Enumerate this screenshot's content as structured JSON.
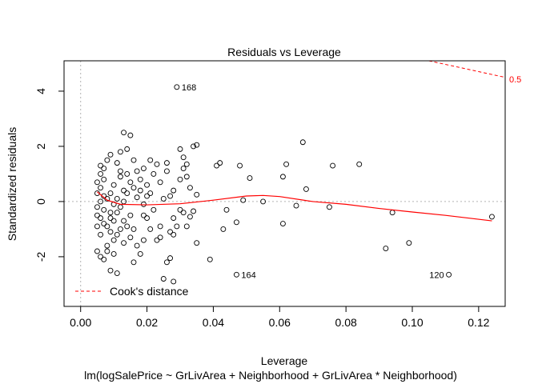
{
  "chart_data": {
    "type": "scatter",
    "title": "Residuals vs Leverage",
    "xlabel": "Leverage",
    "ylabel": "Standardized residuals",
    "subtitle": "lm(logSalePrice ~ GrLivArea + Neighborhood + GrLivArea * Neighborhood)",
    "xlim": [
      -0.005,
      0.128
    ],
    "ylim": [
      -3.8,
      5.1
    ],
    "x_ticks": [
      0.0,
      0.02,
      0.04,
      0.06,
      0.08,
      0.1,
      0.12
    ],
    "x_tick_labels": [
      "0.00",
      "0.02",
      "0.04",
      "0.06",
      "0.08",
      "0.10",
      "0.12"
    ],
    "y_ticks": [
      -2,
      0,
      2,
      4
    ],
    "y_tick_labels": [
      "-2",
      "0",
      "2",
      "4"
    ],
    "legend": {
      "label": "Cook's distance",
      "placement": "bottom-left",
      "color": "#ff0000"
    },
    "cooks_contour_label": "0.5",
    "cooks_contour": {
      "x": [
        0.105,
        0.128
      ],
      "y": [
        5.1,
        4.5
      ]
    },
    "reference_lines": {
      "h": 0,
      "v": 0
    },
    "colors": {
      "points": "#000000",
      "smooth": "#ff0000",
      "reference": "#b3b3b3"
    },
    "smooth_curve": {
      "x": [
        0.005,
        0.008,
        0.012,
        0.02,
        0.03,
        0.04,
        0.05,
        0.055,
        0.06,
        0.07,
        0.08,
        0.09,
        0.1,
        0.11,
        0.124
      ],
      "y": [
        0.35,
        0.05,
        -0.1,
        -0.12,
        -0.08,
        0.05,
        0.2,
        0.22,
        0.18,
        0.0,
        -0.1,
        -0.25,
        -0.38,
        -0.5,
        -0.7
      ]
    },
    "labeled_points": [
      {
        "label": "168",
        "x": 0.029,
        "y": 4.15
      },
      {
        "label": "164",
        "x": 0.047,
        "y": -2.65
      },
      {
        "label": "120",
        "x": 0.111,
        "y": -2.65
      }
    ],
    "points": [
      [
        0.029,
        4.15
      ],
      [
        0.047,
        -2.65
      ],
      [
        0.111,
        -2.65
      ],
      [
        0.067,
        2.15
      ],
      [
        0.084,
        1.35
      ],
      [
        0.076,
        1.3
      ],
      [
        0.062,
        1.35
      ],
      [
        0.051,
        0.85
      ],
      [
        0.048,
        1.3
      ],
      [
        0.042,
        1.4
      ],
      [
        0.041,
        1.3
      ],
      [
        0.044,
        -0.3
      ],
      [
        0.043,
        -1.0
      ],
      [
        0.047,
        -0.75
      ],
      [
        0.049,
        0.05
      ],
      [
        0.055,
        0.0
      ],
      [
        0.061,
        -0.8
      ],
      [
        0.061,
        0.9
      ],
      [
        0.065,
        -0.15
      ],
      [
        0.068,
        0.45
      ],
      [
        0.075,
        -0.2
      ],
      [
        0.092,
        -1.7
      ],
      [
        0.094,
        -0.4
      ],
      [
        0.099,
        -1.5
      ],
      [
        0.124,
        -0.55
      ],
      [
        0.039,
        -2.1
      ],
      [
        0.035,
        2.05
      ],
      [
        0.034,
        2.0
      ],
      [
        0.031,
        1.6
      ],
      [
        0.032,
        1.35
      ],
      [
        0.031,
        1.2
      ],
      [
        0.026,
        1.4
      ],
      [
        0.026,
        1.1
      ],
      [
        0.023,
        1.35
      ],
      [
        0.022,
        1.0
      ],
      [
        0.024,
        0.7
      ],
      [
        0.021,
        0.3
      ],
      [
        0.025,
        0.1
      ],
      [
        0.028,
        0.4
      ],
      [
        0.03,
        0.8
      ],
      [
        0.033,
        0.5
      ],
      [
        0.035,
        0.25
      ],
      [
        0.034,
        -0.35
      ],
      [
        0.033,
        -0.55
      ],
      [
        0.035,
        -1.5
      ],
      [
        0.032,
        -0.9
      ],
      [
        0.029,
        -0.9
      ],
      [
        0.027,
        -1.1
      ],
      [
        0.024,
        -1.3
      ],
      [
        0.023,
        -1.4
      ],
      [
        0.026,
        -2.2
      ],
      [
        0.027,
        -2.05
      ],
      [
        0.025,
        -2.8
      ],
      [
        0.028,
        -2.9
      ],
      [
        0.018,
        -1.9
      ],
      [
        0.016,
        -2.2
      ],
      [
        0.015,
        -1.3
      ],
      [
        0.014,
        -0.9
      ],
      [
        0.019,
        -0.5
      ],
      [
        0.017,
        0.15
      ],
      [
        0.016,
        0.5
      ],
      [
        0.018,
        0.8
      ],
      [
        0.017,
        1.1
      ],
      [
        0.016,
        1.5
      ],
      [
        0.014,
        1.9
      ],
      [
        0.015,
        2.4
      ],
      [
        0.013,
        2.5
      ],
      [
        0.012,
        1.8
      ],
      [
        0.011,
        1.4
      ],
      [
        0.012,
        1.1
      ],
      [
        0.013,
        0.4
      ],
      [
        0.012,
        -0.2
      ],
      [
        0.011,
        -0.4
      ],
      [
        0.013,
        -0.7
      ],
      [
        0.012,
        -1.0
      ],
      [
        0.011,
        -1.2
      ],
      [
        0.01,
        -1.4
      ],
      [
        0.011,
        -2.6
      ],
      [
        0.009,
        -2.5
      ],
      [
        0.01,
        -1.9
      ],
      [
        0.008,
        -1.6
      ],
      [
        0.007,
        -2.1
      ],
      [
        0.008,
        -1.8
      ],
      [
        0.009,
        -1.1
      ],
      [
        0.007,
        -0.8
      ],
      [
        0.006,
        -0.6
      ],
      [
        0.007,
        -0.3
      ],
      [
        0.006,
        0.0
      ],
      [
        0.007,
        0.2
      ],
      [
        0.006,
        0.5
      ],
      [
        0.007,
        0.8
      ],
      [
        0.006,
        1.0
      ],
      [
        0.007,
        1.2
      ],
      [
        0.008,
        1.5
      ],
      [
        0.009,
        1.7
      ],
      [
        0.006,
        1.3
      ],
      [
        0.005,
        0.7
      ],
      [
        0.005,
        0.3
      ],
      [
        0.005,
        -0.2
      ],
      [
        0.005,
        -0.5
      ],
      [
        0.005,
        -0.9
      ],
      [
        0.006,
        -1.2
      ],
      [
        0.005,
        -1.8
      ],
      [
        0.006,
        -2.0
      ],
      [
        0.008,
        0.1
      ],
      [
        0.009,
        0.3
      ],
      [
        0.01,
        0.6
      ],
      [
        0.009,
        -0.4
      ],
      [
        0.01,
        -0.7
      ],
      [
        0.013,
        0.0
      ],
      [
        0.014,
        0.3
      ],
      [
        0.015,
        -0.5
      ],
      [
        0.016,
        -1.0
      ],
      [
        0.019,
        -0.1
      ],
      [
        0.02,
        0.2
      ],
      [
        0.022,
        -0.3
      ],
      [
        0.02,
        -0.6
      ],
      [
        0.021,
        -1.0
      ],
      [
        0.019,
        -1.4
      ],
      [
        0.017,
        -1.6
      ],
      [
        0.03,
        -0.3
      ],
      [
        0.028,
        -0.6
      ],
      [
        0.031,
        -0.4
      ],
      [
        0.03,
        1.9
      ],
      [
        0.032,
        0.9
      ],
      [
        0.02,
        0.6
      ],
      [
        0.014,
        1.0
      ],
      [
        0.015,
        0.7
      ],
      [
        0.018,
        0.4
      ],
      [
        0.011,
        0.1
      ],
      [
        0.012,
        0.9
      ],
      [
        0.01,
        -0.1
      ],
      [
        0.008,
        -0.9
      ],
      [
        0.009,
        -0.6
      ],
      [
        0.013,
        -1.5
      ],
      [
        0.024,
        -0.9
      ],
      [
        0.027,
        0.2
      ],
      [
        0.028,
        -1.2
      ],
      [
        0.021,
        1.5
      ],
      [
        0.019,
        1.2
      ]
    ]
  }
}
